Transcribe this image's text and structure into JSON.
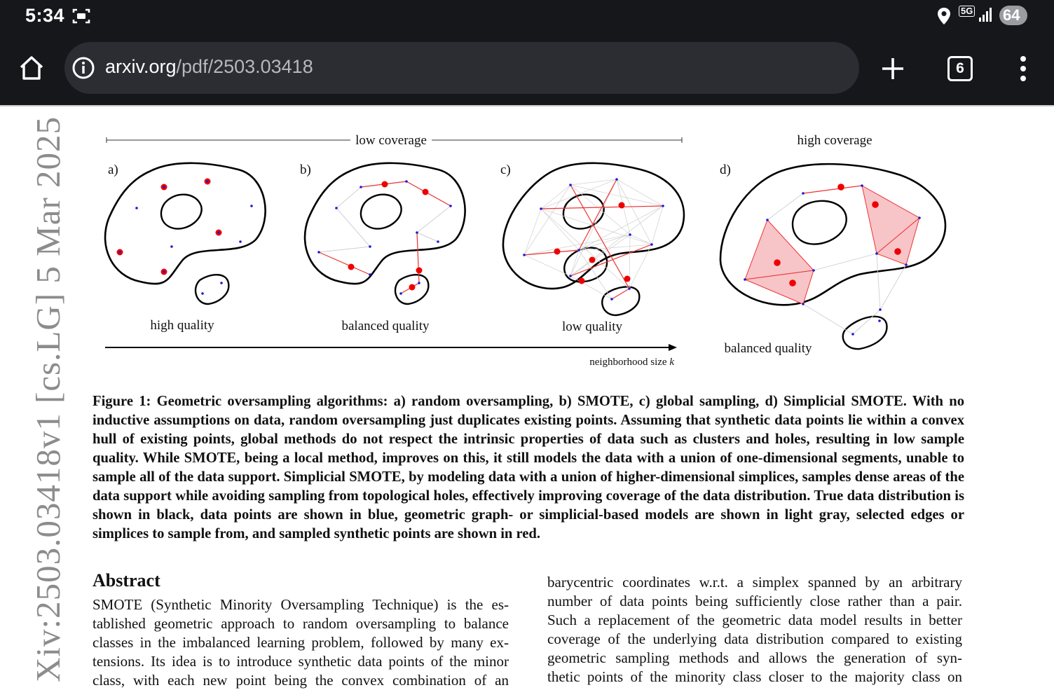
{
  "status_bar": {
    "time": "5:34",
    "network": "5G",
    "battery": "64"
  },
  "browser": {
    "url_host": "arxiv.org",
    "url_path": "/pdf/2503.03418",
    "tab_count": "6"
  },
  "document": {
    "sidebar_identifier": "Xiv:2503.03418v1  [cs.LG]  5 Mar 2025",
    "figure": {
      "low_coverage_label": "low coverage",
      "high_coverage_label": "high coverage",
      "panel_a": "a)",
      "panel_b": "b)",
      "panel_c": "c)",
      "panel_d": "d)",
      "label_a": "high quality",
      "label_b": "balanced quality",
      "label_c": "low quality",
      "label_d": "balanced quality",
      "axis_label": "neighborhood size",
      "axis_var": "k"
    },
    "caption": "Figure 1: Geometric oversampling algorithms: a) random oversampling, b) SMOTE, c) global sampling, d) Simplicial SMOTE. With no inductive assumptions on data, random oversampling just duplicates existing points. Assuming that synthetic data points lie within a convex hull of existing points, global methods do not respect the intrinsic properties of data such as clusters and holes, resulting in low sample quality. While SMOTE, being a local method, improves on this, it still models the data with a union of one-dimensional segments, unable to sample all of the data support. Simplicial SMOTE, by modeling data with a union of higher-dimensional simplices, samples dense areas of the data support while avoiding sampling from topological holes, effectively improving coverage of the data distribution. True data distribution is shown in black, data points are shown in blue, geometric graph- or simplicial-based models are shown in light gray, selected edges or simplices to sample from, and sampled synthetic points are shown in red.",
    "abstract_title": "Abstract",
    "abstract_left": [
      "SMOTE (Synthetic Minority Oversampling Technique) is the es-",
      "tablished geometric approach to random oversampling to balance",
      "classes in the imbalanced learning problem, followed by many ex-",
      "tensions. Its idea is to introduce synthetic data points of the minor",
      "class, with each new point being the convex combination of an"
    ],
    "abstract_right": [
      "barycentric coordinates w.r.t. a simplex spanned by an arbitrary",
      "number of data points being sufficiently close rather than a pair.",
      "Such a replacement of the geometric data model results in better",
      "coverage of the underlying data distribution compared to existing",
      "geometric sampling methods and allows the generation of syn-",
      "thetic points of the minority class closer to the majority class on"
    ]
  }
}
